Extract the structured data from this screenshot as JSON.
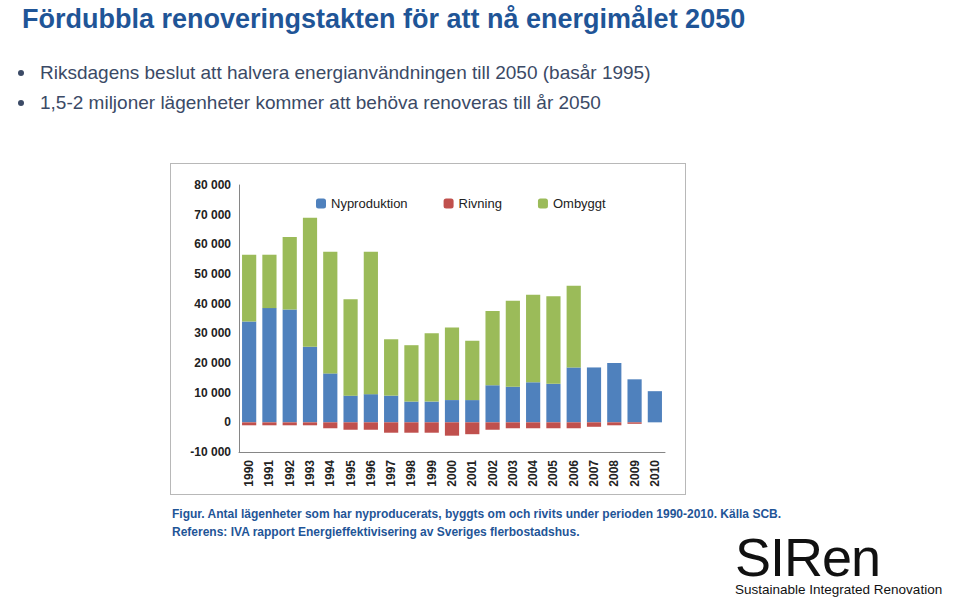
{
  "page": {
    "title": "Fördubbla renoveringstakten för att nå energimålet 2050",
    "bullets": [
      "Riksdagens beslut att halvera energianvändningen till 2050 (basår 1995)",
      "1,5-2 miljoner lägenheter kommer att behöva renoveras till år 2050"
    ],
    "caption": [
      "Figur. Antal lägenheter som har nyproducerats, byggts om och rivits under perioden 1990-2010. Källa SCB.",
      "Referens: IVA rapport Energieffektivisering av Sveriges flerbostadshus."
    ],
    "logo": {
      "name": "SIRen",
      "tagline": "Sustainable Integrated Renovation"
    }
  },
  "chart_data": {
    "type": "bar",
    "stacked": true,
    "grid": false,
    "legend": "top",
    "categories": [
      "1990",
      "1991",
      "1992",
      "1993",
      "1994",
      "1995",
      "1996",
      "1997",
      "1998",
      "1999",
      "2000",
      "2001",
      "2002",
      "2003",
      "2004",
      "2005",
      "2006",
      "2007",
      "2008",
      "2009",
      "2010"
    ],
    "series": [
      {
        "name": "Nyproduktion",
        "color": "#4f81bd",
        "values": [
          34000,
          38500,
          38000,
          25500,
          16500,
          9000,
          9500,
          9000,
          7000,
          7000,
          7500,
          7500,
          12500,
          12000,
          13500,
          13000,
          18500,
          18500,
          20000,
          14500,
          10500
        ]
      },
      {
        "name": "Rivning",
        "color": "#c0504d",
        "values": [
          -1000,
          -1000,
          -1000,
          -1000,
          -2000,
          -2500,
          -2500,
          -3500,
          -3500,
          -3500,
          -4500,
          -4000,
          -2500,
          -2000,
          -2000,
          -2000,
          -2000,
          -1500,
          -1000,
          -500,
          null
        ]
      },
      {
        "name": "Ombyggt",
        "color": "#9bbb59",
        "values": [
          22500,
          18000,
          24500,
          43500,
          41000,
          32500,
          48000,
          19000,
          19000,
          23000,
          24500,
          20000,
          25000,
          29000,
          29500,
          29500,
          27500,
          null,
          null,
          null,
          null
        ]
      }
    ],
    "ylim": [
      -10000,
      80000
    ],
    "yticks": [
      {
        "value": -10000,
        "label": "-10 000"
      },
      0,
      {
        "value": 10000,
        "label": "10 000"
      },
      {
        "value": 20000,
        "label": "20 000"
      },
      {
        "value": 30000,
        "label": "30 000"
      },
      {
        "value": 40000,
        "label": "40 000"
      },
      {
        "value": 50000,
        "label": "50 000"
      },
      {
        "value": 60000,
        "label": "60 000"
      },
      {
        "value": 70000,
        "label": "70 000"
      },
      {
        "value": 80000,
        "label": "80 000"
      }
    ]
  }
}
